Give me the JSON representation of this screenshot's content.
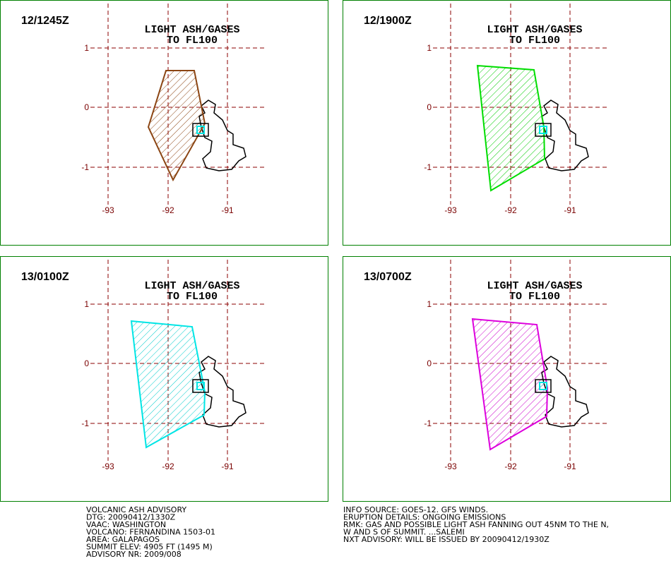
{
  "panels": [
    {
      "time": "12/1245Z",
      "title": [
        "LIGHT ASH/GASES",
        "TO FL100"
      ]
    },
    {
      "time": "12/1900Z",
      "title": [
        "LIGHT ASH/GASES",
        "TO FL100"
      ]
    },
    {
      "time": "13/0100Z",
      "title": [
        "LIGHT ASH/GASES",
        "TO FL100"
      ]
    },
    {
      "time": "13/0700Z",
      "title": [
        "LIGHT ASH/GASES",
        "TO FL100"
      ]
    }
  ],
  "axes": {
    "lat_labels": [
      "1",
      "0",
      "-1"
    ],
    "lon_labels": [
      "-93",
      "-92",
      "-91"
    ]
  },
  "advisory_left": [
    "VOLCANIC ASH ADVISORY",
    "DTG: 20090412/1330Z",
    "VAAC: WASHINGTON",
    "VOLCANO: FERNANDINA 1503-01",
    "AREA: GALAPAGOS",
    "SUMMIT ELEV: 4905 FT (1495 M)",
    "ADVISORY NR: 2009/008"
  ],
  "advisory_right": [
    "INFO SOURCE: GOES-12. GFS WINDS.",
    "ERUPTION DETAILS: ONGOING EMISSIONS",
    "RMK: GAS AND POSSIBLE LIGHT ASH FANNING OUT 45NM TO THE N,",
    "W AND S OF SUMMIT. ...SALEMI",
    "NXT ADVISORY: WILL BE ISSUED BY 20090412/1930Z"
  ]
}
